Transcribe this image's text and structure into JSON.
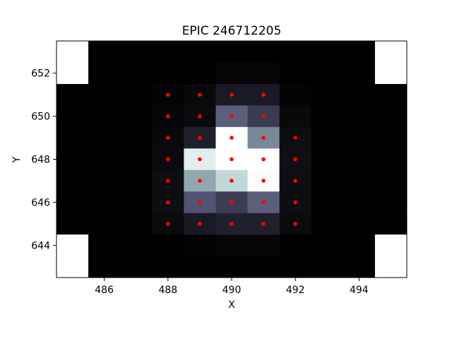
{
  "chart_data": {
    "type": "heatmap",
    "title": "EPIC 246712205",
    "xlabel": "X",
    "ylabel": "Y",
    "xlim": [
      484.5,
      495.5
    ],
    "ylim": [
      642.5,
      653.5
    ],
    "x_ticks": [
      486,
      488,
      490,
      492,
      494
    ],
    "y_ticks": [
      644,
      646,
      648,
      650,
      652
    ],
    "colormap": "bone",
    "grid": false,
    "cell_columns": [
      485,
      486,
      487,
      488,
      489,
      490,
      491,
      492,
      493,
      494,
      495
    ],
    "cell_rows": [
      653,
      652,
      651,
      650,
      649,
      648,
      647,
      646,
      645,
      644,
      643
    ],
    "intensity_note": "",
    "intensity": [
      [
        null,
        0.0,
        0.0,
        0.0,
        0.0,
        0.0,
        0.0,
        0.0,
        0.0,
        0.0,
        null
      ],
      [
        null,
        0.0,
        0.0,
        0.0,
        0.0,
        0.03,
        0.03,
        0.0,
        0.0,
        0.0,
        null
      ],
      [
        0.0,
        0.0,
        0.0,
        0.02,
        0.04,
        0.12,
        0.12,
        0.02,
        0.0,
        0.0,
        0.0
      ],
      [
        0.0,
        0.0,
        0.0,
        0.03,
        0.05,
        0.42,
        0.27,
        0.04,
        0.0,
        0.0,
        0.0
      ],
      [
        0.0,
        0.0,
        0.0,
        0.04,
        0.15,
        1.0,
        0.55,
        0.06,
        0.0,
        0.0,
        0.0
      ],
      [
        0.0,
        0.0,
        0.0,
        0.05,
        0.92,
        1.0,
        1.0,
        0.07,
        0.0,
        0.0,
        0.0
      ],
      [
        0.0,
        0.0,
        0.0,
        0.06,
        0.65,
        0.83,
        0.99,
        0.06,
        0.0,
        0.0,
        0.0
      ],
      [
        0.0,
        0.0,
        0.0,
        0.06,
        0.38,
        0.28,
        0.42,
        0.06,
        0.0,
        0.0,
        0.0
      ],
      [
        0.0,
        0.0,
        0.0,
        0.05,
        0.12,
        0.15,
        0.15,
        0.05,
        0.0,
        0.0,
        0.0
      ],
      [
        null,
        0.0,
        0.0,
        0.0,
        0.02,
        0.03,
        0.03,
        0.0,
        0.0,
        0.0,
        null
      ],
      [
        null,
        0.0,
        0.0,
        0.0,
        0.0,
        0.0,
        0.0,
        0.0,
        0.0,
        0.0,
        null
      ]
    ],
    "aperture_points": {
      "color": "#ff0000",
      "points": [
        [
          488,
          651
        ],
        [
          489,
          651
        ],
        [
          490,
          651
        ],
        [
          491,
          651
        ],
        [
          488,
          650
        ],
        [
          489,
          650
        ],
        [
          490,
          650
        ],
        [
          491,
          650
        ],
        [
          488,
          649
        ],
        [
          489,
          649
        ],
        [
          490,
          649
        ],
        [
          491,
          649
        ],
        [
          492,
          649
        ],
        [
          488,
          648
        ],
        [
          489,
          648
        ],
        [
          490,
          648
        ],
        [
          491,
          648
        ],
        [
          492,
          648
        ],
        [
          488,
          647
        ],
        [
          489,
          647
        ],
        [
          490,
          647
        ],
        [
          491,
          647
        ],
        [
          492,
          647
        ],
        [
          488,
          646
        ],
        [
          489,
          646
        ],
        [
          490,
          646
        ],
        [
          491,
          646
        ],
        [
          492,
          646
        ],
        [
          488,
          645
        ],
        [
          489,
          645
        ],
        [
          490,
          645
        ],
        [
          491,
          645
        ],
        [
          492,
          645
        ]
      ]
    }
  }
}
